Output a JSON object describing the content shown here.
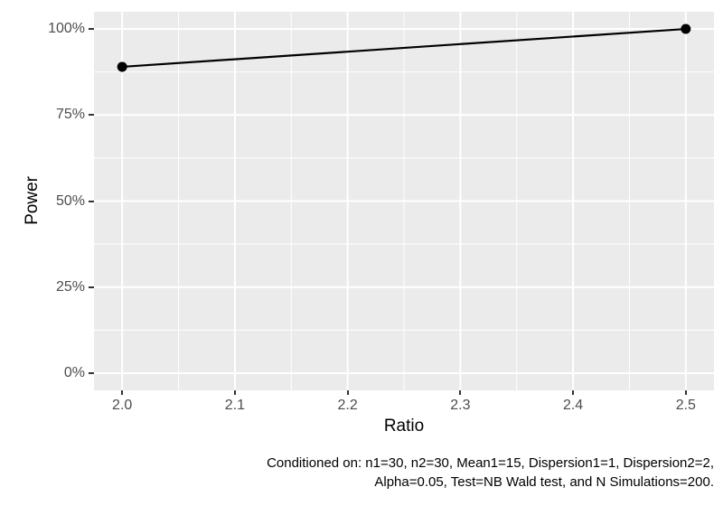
{
  "axes": {
    "x_title": "Ratio",
    "y_title": "Power"
  },
  "caption": {
    "line1": "Conditioned on: n1=30, n2=30, Mean1=15, Dispersion1=1, Dispersion2=2,",
    "line2": "Alpha=0.05, Test=NB Wald test, and N Simulations=200."
  },
  "chart_data": {
    "type": "line",
    "title": "",
    "xlabel": "Ratio",
    "ylabel": "Power",
    "x": [
      2.0,
      2.5
    ],
    "series": [
      {
        "name": "Power",
        "values": [
          0.89,
          1.0
        ]
      }
    ],
    "xlim": [
      1.975,
      2.525
    ],
    "ylim": [
      -0.05,
      1.05
    ],
    "x_ticks": [
      2.0,
      2.1,
      2.2,
      2.3,
      2.4,
      2.5
    ],
    "x_tick_labels": [
      "2.0",
      "2.1",
      "2.2",
      "2.3",
      "2.4",
      "2.5"
    ],
    "x_minor_ticks": [
      2.05,
      2.15,
      2.25,
      2.35,
      2.45
    ],
    "y_ticks": [
      0,
      0.25,
      0.5,
      0.75,
      1.0
    ],
    "y_tick_labels": [
      "0%",
      "25%",
      "50%",
      "75%",
      "100%"
    ],
    "y_minor_ticks": [
      0.125,
      0.375,
      0.625,
      0.875
    ],
    "grid": "major+minor",
    "legend_position": "none",
    "theme": "ggplot-gray",
    "point_radius": 5.5,
    "line_width": 2.2,
    "colors": {
      "panel_background": "#EBEBEB",
      "grid_major": "#FFFFFF",
      "grid_minor": "#FFFFFF",
      "line": "#000000",
      "point": "#000000",
      "tick_label": "#4D4D4D",
      "axis_title": "#000000",
      "tick_mark": "#333333",
      "caption": "#000000",
      "figure_background": "#FFFFFF"
    }
  }
}
